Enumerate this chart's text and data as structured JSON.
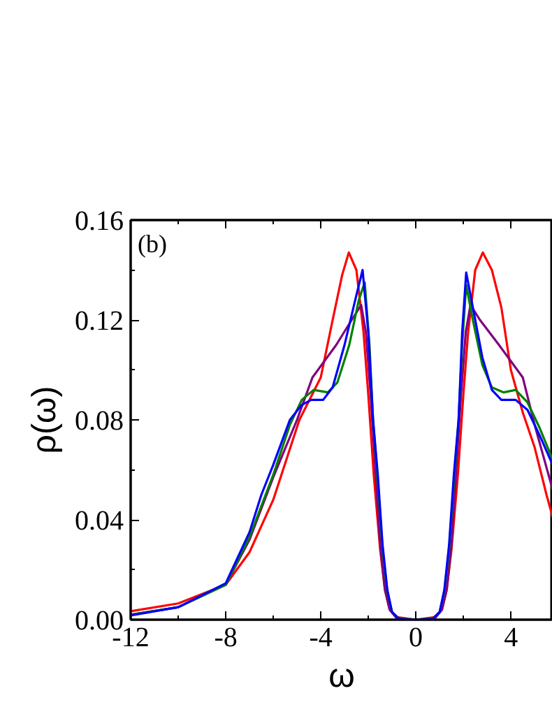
{
  "chart_data": {
    "type": "line",
    "xlabel": "ω",
    "ylabel": "ρ(ω)",
    "annotations": [
      "(b)"
    ],
    "xlim": [
      -12,
      5.76
    ],
    "ylim": [
      0,
      0.16
    ],
    "xticks": [
      -12,
      {
        "value": -10,
        "label": null
      },
      -8,
      {
        "value": -6,
        "label": null
      },
      -4,
      {
        "value": -2,
        "label": null
      },
      0,
      {
        "value": 2,
        "label": null
      },
      4
    ],
    "yticks": [
      {
        "value": 0,
        "label": "0.00"
      },
      {
        "value": 0.02,
        "label": null
      },
      {
        "value": 0.04,
        "label": "0.04"
      },
      {
        "value": 0.06,
        "label": null
      },
      {
        "value": 0.08,
        "label": "0.08"
      },
      {
        "value": 0.1,
        "label": null
      },
      {
        "value": 0.12,
        "label": "0.12"
      },
      {
        "value": 0.14,
        "label": null
      },
      {
        "value": 0.16,
        "label": "0.16"
      }
    ],
    "grid": false,
    "line_style": "solid",
    "marker": "none",
    "series": [
      {
        "color": "#ff0000",
        "x": [
          -12,
          -10,
          -8,
          -7,
          -6,
          -4.9,
          -4,
          -3.5,
          -3.1,
          -2.82,
          -2.5,
          -2.2,
          -2.0,
          -1.77,
          -1.5,
          -1.3,
          -1.1,
          -0.8,
          0,
          0.8,
          1.1,
          1.3,
          1.5,
          1.77,
          2.0,
          2.2,
          2.5,
          2.82,
          3.2,
          3.6,
          4.0,
          4.5,
          5.0,
          5.5,
          5.76
        ],
        "values": [
          0.0034,
          0.0065,
          0.014,
          0.027,
          0.048,
          0.08,
          0.097,
          0.12,
          0.138,
          0.147,
          0.14,
          0.115,
          0.09,
          0.058,
          0.028,
          0.012,
          0.004,
          0.001,
          0,
          0.001,
          0.004,
          0.012,
          0.028,
          0.058,
          0.09,
          0.115,
          0.14,
          0.147,
          0.14,
          0.125,
          0.1,
          0.083,
          0.069,
          0.05,
          0.041
        ]
      },
      {
        "color": "#800080",
        "x": [
          -12,
          -10,
          -8,
          -7,
          -6,
          -5,
          -4.35,
          -3.35,
          -2.7,
          -2.3,
          -2.1,
          -1.9,
          -1.7,
          -1.5,
          -1.3,
          -1.1,
          -0.8,
          0,
          0.8,
          1.1,
          1.3,
          1.5,
          1.7,
          1.9,
          2.1,
          2.3,
          2.7,
          3.5,
          4.5,
          5.0,
          5.76
        ],
        "values": [
          0.002,
          0.005,
          0.014,
          0.032,
          0.057,
          0.08,
          0.097,
          0.11,
          0.12,
          0.126,
          0.115,
          0.09,
          0.06,
          0.03,
          0.012,
          0.004,
          0.0005,
          0,
          0.0005,
          0.004,
          0.012,
          0.03,
          0.06,
          0.09,
          0.115,
          0.126,
          0.12,
          0.11,
          0.097,
          0.078,
          0.052
        ]
      },
      {
        "color": "#008000",
        "x": [
          -12,
          -10,
          -8,
          -7,
          -6,
          -5.3,
          -4.8,
          -4.3,
          -3.7,
          -3.3,
          -2.8,
          -2.4,
          -2.15,
          -1.95,
          -1.8,
          -1.6,
          -1.4,
          -1.2,
          -1.0,
          -0.7,
          0,
          0.7,
          1.0,
          1.2,
          1.4,
          1.6,
          1.8,
          1.95,
          2.12,
          2.4,
          2.8,
          3.2,
          3.7,
          4.2,
          4.7,
          5.2,
          5.76
        ],
        "values": [
          0.002,
          0.005,
          0.014,
          0.033,
          0.058,
          0.078,
          0.088,
          0.092,
          0.091,
          0.095,
          0.11,
          0.128,
          0.135,
          0.11,
          0.08,
          0.055,
          0.028,
          0.011,
          0.003,
          0.0003,
          0,
          0.0003,
          0.003,
          0.011,
          0.028,
          0.055,
          0.08,
          0.11,
          0.134,
          0.12,
          0.102,
          0.093,
          0.091,
          0.092,
          0.087,
          0.077,
          0.064
        ]
      },
      {
        "color": "#0000ff",
        "x": [
          -12,
          -10,
          -8,
          -7,
          -6.5,
          -6,
          -5.3,
          -4.8,
          -4.4,
          -3.9,
          -3.5,
          -3,
          -2.5,
          -2.24,
          -2.0,
          -1.8,
          -1.6,
          -1.4,
          -1.2,
          -1.0,
          -0.7,
          0,
          0.7,
          1.0,
          1.2,
          1.4,
          1.6,
          1.8,
          1.95,
          2.12,
          2.4,
          2.8,
          3.2,
          3.6,
          4.2,
          4.7,
          5.2,
          5.76
        ],
        "values": [
          0.0017,
          0.005,
          0.0146,
          0.035,
          0.05,
          0.062,
          0.08,
          0.086,
          0.088,
          0.088,
          0.093,
          0.11,
          0.13,
          0.14,
          0.115,
          0.08,
          0.058,
          0.03,
          0.012,
          0.003,
          0.0003,
          0,
          0.0003,
          0.003,
          0.012,
          0.03,
          0.058,
          0.08,
          0.115,
          0.139,
          0.125,
          0.105,
          0.092,
          0.088,
          0.088,
          0.084,
          0.074,
          0.062
        ]
      }
    ]
  }
}
